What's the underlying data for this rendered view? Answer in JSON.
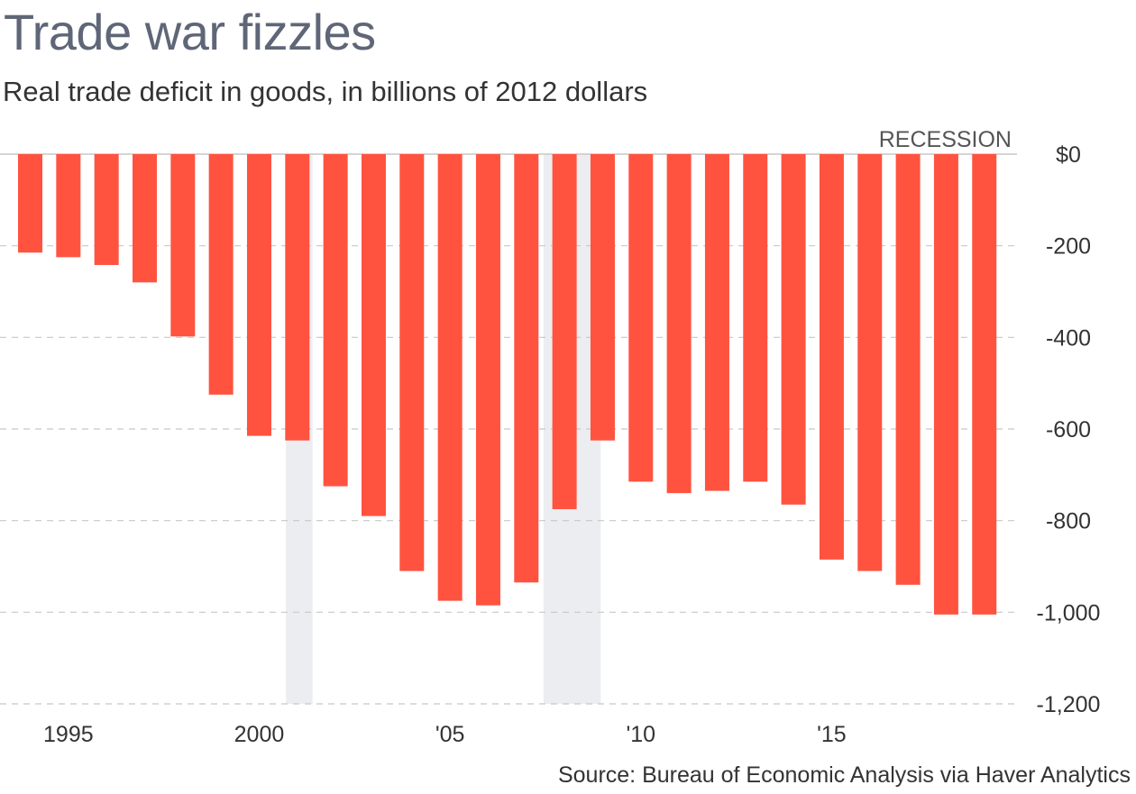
{
  "title": "Trade war fizzles",
  "subtitle": "Real trade deficit in goods, in billions of 2012 dollars",
  "source": "Source: Bureau of Economic Analysis via Haver Analytics",
  "recession_label": "RECESSION",
  "colors": {
    "bar": "#ff5340",
    "recession": "#ecedf0",
    "grid": "#c8c8c8",
    "title": "#5f6677"
  },
  "chart_data": {
    "type": "bar",
    "title": "Trade war fizzles",
    "subtitle": "Real trade deficit in goods, in billions of 2012 dollars",
    "xlabel": "",
    "ylabel": "",
    "ylim": [
      -1200,
      0
    ],
    "y_ticks": [
      0,
      -200,
      -400,
      -600,
      -800,
      -1000,
      -1200
    ],
    "y_tick_labels": [
      "$0",
      "-200",
      "-400",
      "-600",
      "-800",
      "-1,000",
      "-1,200"
    ],
    "categories": [
      1994,
      1995,
      1996,
      1997,
      1998,
      1999,
      2000,
      2001,
      2002,
      2003,
      2004,
      2005,
      2006,
      2007,
      2008,
      2009,
      2010,
      2011,
      2012,
      2013,
      2014,
      2015,
      2016,
      2017,
      2018,
      2019
    ],
    "values": [
      -215,
      -225,
      -242,
      -280,
      -398,
      -525,
      -615,
      -625,
      -725,
      -790,
      -910,
      -975,
      -985,
      -935,
      -775,
      -625,
      -715,
      -740,
      -735,
      -715,
      -765,
      -885,
      -910,
      -940,
      -1005,
      -1005
    ],
    "x_tick_labels": [
      {
        "year": 1995,
        "label": "1995"
      },
      {
        "year": 2000,
        "label": "2000"
      },
      {
        "year": 2005,
        "label": "'05"
      },
      {
        "year": 2010,
        "label": "'10"
      },
      {
        "year": 2015,
        "label": "'15"
      }
    ],
    "recessions": [
      {
        "start": 2001.2,
        "end": 2001.9
      },
      {
        "start": 2007.95,
        "end": 2009.45
      }
    ],
    "legend": "RECESSION label at top-right",
    "grid": true
  }
}
